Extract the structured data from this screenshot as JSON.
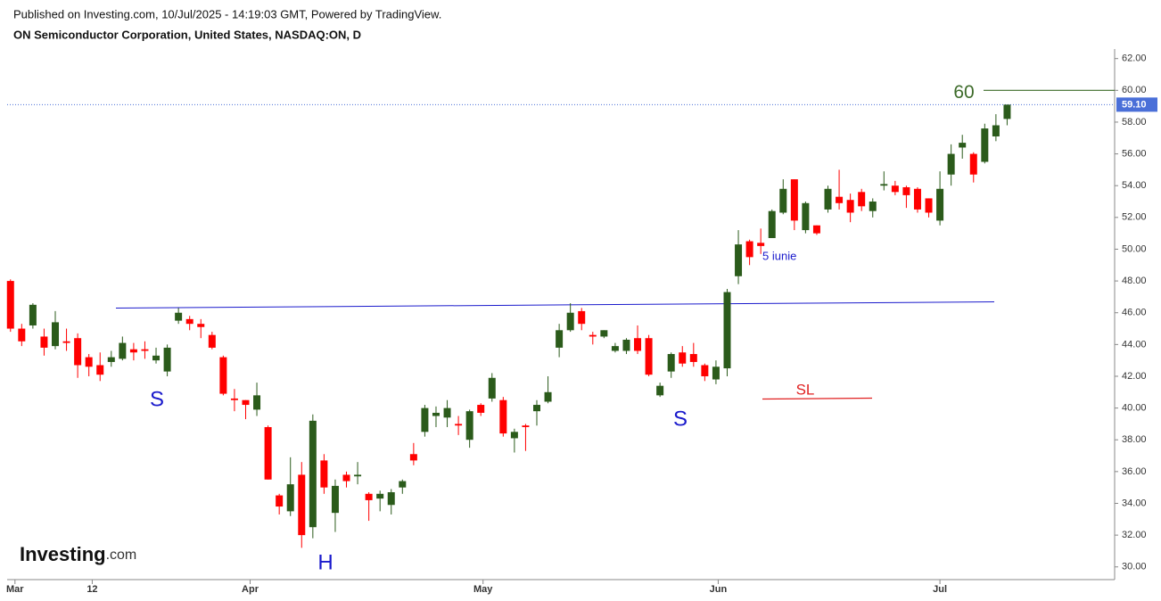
{
  "header": {
    "published": "Published on Investing.com, 10/Jul/2025 - 14:19:03 GMT, Powered by TradingView.",
    "instrument": "ON Semiconductor Corporation, United States, NASDAQ:ON, D"
  },
  "logo": {
    "name": "Investing",
    "suffix": ".com"
  },
  "chart_data": {
    "type": "candlestick",
    "up_color": "#2b5b1b",
    "down_color": "#ff0000",
    "open": [
      48.0,
      45.0,
      45.2,
      44.5,
      43.9,
      44.2,
      44.4,
      43.2,
      42.7,
      42.9,
      43.1,
      43.7,
      43.7,
      43.0,
      42.3,
      45.5,
      45.6,
      45.3,
      44.6,
      43.2,
      40.6,
      40.5,
      39.9,
      38.8,
      34.5,
      33.5,
      35.8,
      32.5,
      36.7,
      33.4,
      35.8,
      35.7,
      34.6,
      34.3,
      33.9,
      35.0,
      37.1,
      38.5,
      39.5,
      39.4,
      39.0,
      38.0,
      40.2,
      40.6,
      40.5,
      38.1,
      38.9,
      39.8,
      40.4,
      43.8,
      44.9,
      46.1,
      44.6,
      44.5,
      43.6,
      43.6,
      44.4,
      44.4,
      40.8,
      42.3,
      43.5,
      43.4,
      42.7,
      41.8,
      42.5,
      48.3,
      50.5,
      50.4,
      50.7,
      52.3,
      54.4,
      51.2,
      51.5,
      52.5,
      53.3,
      53.1,
      53.6,
      52.4,
      54.0,
      54.0,
      53.9,
      53.8,
      53.2,
      51.8,
      54.7,
      56.4,
      56.0,
      55.5,
      57.1,
      58.2
    ],
    "high": [
      48.1,
      45.3,
      46.6,
      45.0,
      46.1,
      45.0,
      44.7,
      43.4,
      43.5,
      43.6,
      44.5,
      44.1,
      44.2,
      43.8,
      44.0,
      46.3,
      45.8,
      45.6,
      44.8,
      43.3,
      41.2,
      40.5,
      41.6,
      38.9,
      34.6,
      36.9,
      36.6,
      39.6,
      37.1,
      35.5,
      36.0,
      36.6,
      34.7,
      34.8,
      34.9,
      35.5,
      37.8,
      40.2,
      40.1,
      40.5,
      39.5,
      39.9,
      40.3,
      42.2,
      40.7,
      38.7,
      39.0,
      40.5,
      42.0,
      45.3,
      46.6,
      46.3,
      44.8,
      44.9,
      44.1,
      44.4,
      45.2,
      44.6,
      41.6,
      43.5,
      43.9,
      44.1,
      42.8,
      43.0,
      47.5,
      51.2,
      50.6,
      51.3,
      52.5,
      54.4,
      54.4,
      53.0,
      51.5,
      54.0,
      55.0,
      53.5,
      53.8,
      53.2,
      54.9,
      54.3,
      54.0,
      53.9,
      53.2,
      54.9,
      56.6,
      57.2,
      56.1,
      57.9,
      58.5,
      59.1
    ],
    "low": [
      44.8,
      43.9,
      45.0,
      43.3,
      43.7,
      43.6,
      41.9,
      42.0,
      41.7,
      42.6,
      43.0,
      43.0,
      43.1,
      42.8,
      42.0,
      45.3,
      44.9,
      44.4,
      43.7,
      40.8,
      39.8,
      39.3,
      39.5,
      35.5,
      33.3,
      33.2,
      31.2,
      31.8,
      34.6,
      32.2,
      35.0,
      35.2,
      32.9,
      33.5,
      33.3,
      34.6,
      36.4,
      38.2,
      38.8,
      38.8,
      38.3,
      37.5,
      39.5,
      40.4,
      38.2,
      37.2,
      37.3,
      38.9,
      40.3,
      43.2,
      44.8,
      44.9,
      44.0,
      44.4,
      43.5,
      43.4,
      43.4,
      42.0,
      40.7,
      41.9,
      42.6,
      42.6,
      41.7,
      41.5,
      42.0,
      47.8,
      49.0,
      49.7,
      50.7,
      52.2,
      51.2,
      51.0,
      50.9,
      52.3,
      52.5,
      51.7,
      52.4,
      52.0,
      53.7,
      53.4,
      52.6,
      52.3,
      52.0,
      51.5,
      54.0,
      55.7,
      54.2,
      55.4,
      56.8,
      57.8
    ],
    "close": [
      45.0,
      44.2,
      46.5,
      43.8,
      45.4,
      44.1,
      42.7,
      42.6,
      42.1,
      43.2,
      44.1,
      43.5,
      43.6,
      43.3,
      43.8,
      46.0,
      45.3,
      45.1,
      43.8,
      40.9,
      40.5,
      40.2,
      40.8,
      35.5,
      33.8,
      35.2,
      32.0,
      39.2,
      35.0,
      35.1,
      35.4,
      35.8,
      34.2,
      34.6,
      34.7,
      35.4,
      36.7,
      40.0,
      39.7,
      40.0,
      38.9,
      39.8,
      39.7,
      41.9,
      38.4,
      38.5,
      38.8,
      40.2,
      41.0,
      44.9,
      46.0,
      45.3,
      44.5,
      44.9,
      43.9,
      44.3,
      43.6,
      42.1,
      41.4,
      43.4,
      42.8,
      42.9,
      42.0,
      42.6,
      47.3,
      50.3,
      49.5,
      50.2,
      52.4,
      53.8,
      51.8,
      52.9,
      51.0,
      53.8,
      52.9,
      52.3,
      52.7,
      53.0,
      54.1,
      53.6,
      53.4,
      52.5,
      52.3,
      53.8,
      56.0,
      56.7,
      54.7,
      57.6,
      57.8,
      59.1
    ],
    "xlim": [
      -0.3,
      98.6
    ],
    "xticks": [
      {
        "value": 0.4,
        "label": "Mar"
      },
      {
        "value": 7.3,
        "label": "12"
      },
      {
        "value": 21.4,
        "label": "Apr"
      },
      {
        "value": 42.2,
        "label": "May"
      },
      {
        "value": 63.2,
        "label": "Jun"
      },
      {
        "value": 83,
        "label": "Jul"
      }
    ],
    "ylim": [
      29.2,
      62.6
    ],
    "yticks": [
      {
        "value": 30,
        "label": "30.00"
      },
      {
        "value": 32,
        "label": "32.00"
      },
      {
        "value": 34,
        "label": "34.00"
      },
      {
        "value": 36,
        "label": "36.00"
      },
      {
        "value": 38,
        "label": "38.00"
      },
      {
        "value": 40,
        "label": "40.00"
      },
      {
        "value": 42,
        "label": "42.00"
      },
      {
        "value": 44,
        "label": "44.00"
      },
      {
        "value": 46,
        "label": "46.00"
      },
      {
        "value": 48,
        "label": "48.00"
      },
      {
        "value": 50,
        "label": "50.00"
      },
      {
        "value": 52,
        "label": "52.00"
      },
      {
        "value": 54,
        "label": "54.00"
      },
      {
        "value": 56,
        "label": "56.00"
      },
      {
        "value": 58,
        "label": "58.00"
      },
      {
        "value": 60,
        "label": "60.00"
      },
      {
        "value": 62,
        "label": "62.00"
      }
    ],
    "last_price": {
      "value": 59.1,
      "label": "59.10"
    },
    "target": 60,
    "annotations": {
      "shoulder_left": "S",
      "head": "H",
      "shoulder_right": "S",
      "date_note": "5 iunie",
      "stop_loss": "SL"
    }
  }
}
